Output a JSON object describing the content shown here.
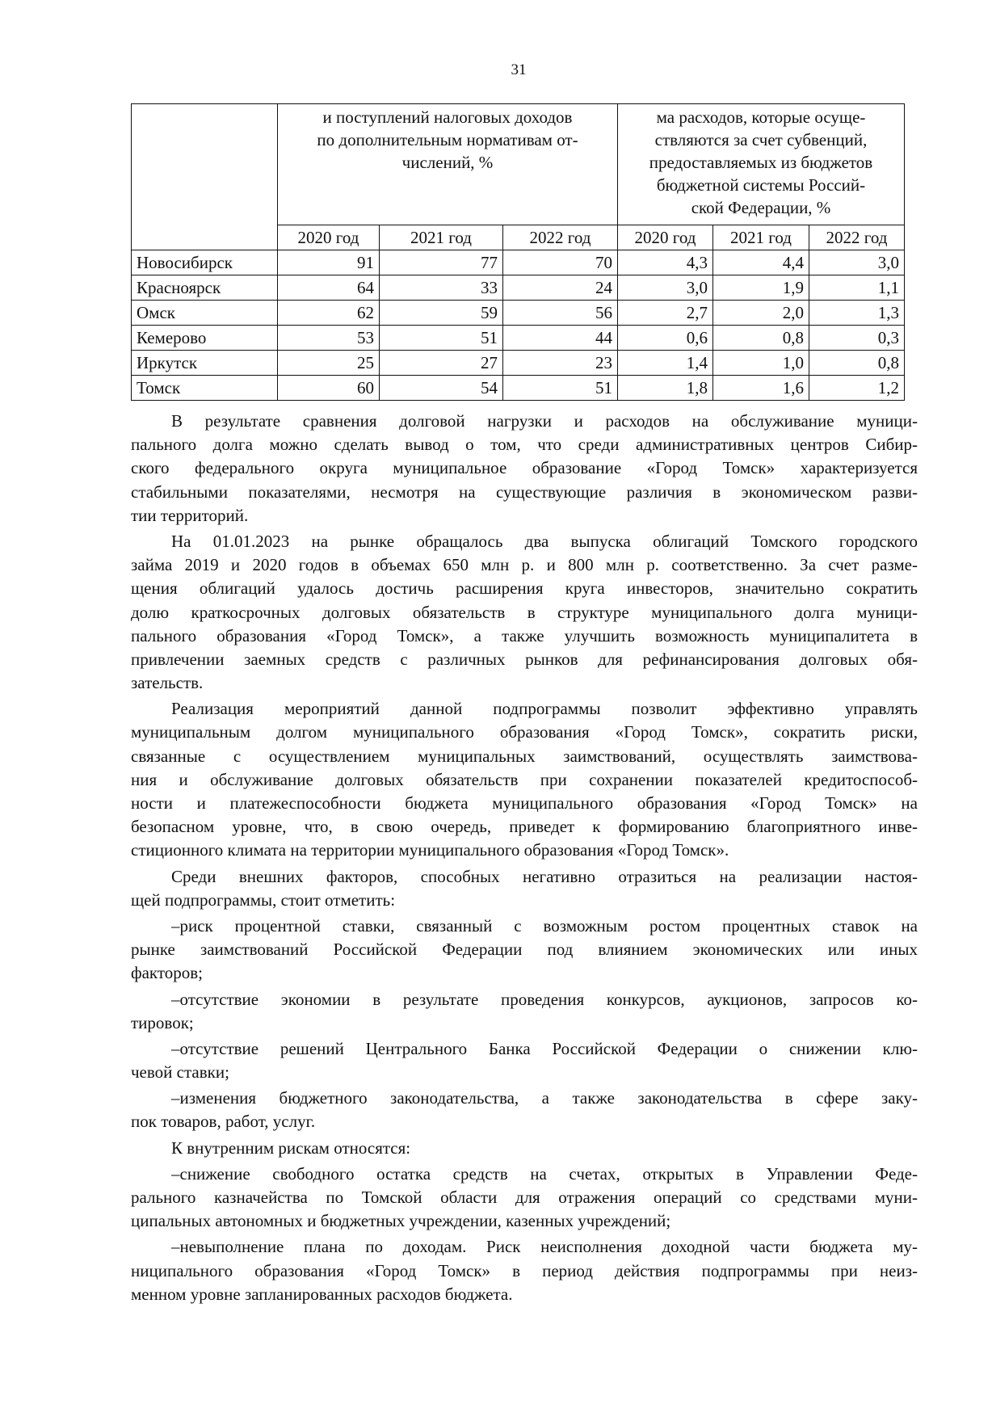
{
  "page_number": "31",
  "table": {
    "header_left": [
      "и поступлений налоговых доходов",
      "по дополнительным нормативам от-",
      "числений, %"
    ],
    "header_right": [
      "ма расходов, которые осуще-",
      "ствляются за счет субвенций,",
      "предоставляемых из бюджетов",
      "бюджетной системы Россий-",
      "ской Федерации, %"
    ],
    "years": [
      "2020 год",
      "2021 год",
      "2022 год",
      "2020 год",
      "2021 год",
      "2022 год"
    ],
    "rows": [
      {
        "city": "Новосибирск",
        "values": [
          "91",
          "77",
          "70",
          "4,3",
          "4,4",
          "3,0"
        ]
      },
      {
        "city": "Красноярск",
        "values": [
          "64",
          "33",
          "24",
          "3,0",
          "1,9",
          "1,1"
        ]
      },
      {
        "city": "Омск",
        "values": [
          "62",
          "59",
          "56",
          "2,7",
          "2,0",
          "1,3"
        ]
      },
      {
        "city": "Кемерово",
        "values": [
          "53",
          "51",
          "44",
          "0,6",
          "0,8",
          "0,3"
        ]
      },
      {
        "city": "Иркутск",
        "values": [
          "25",
          "27",
          "23",
          "1,4",
          "1,0",
          "0,8"
        ]
      },
      {
        "city": "Томск",
        "values": [
          "60",
          "54",
          "51",
          "1,8",
          "1,6",
          "1,2"
        ]
      }
    ]
  },
  "paragraphs": [
    [
      "В результате сравнения долговой нагрузки и расходов на обслуживание муници-",
      "пального долга можно сделать вывод о том, что среди административных центров Сибир-",
      "ского федерального округа муниципальное образование «Город Томск» характеризуется",
      "стабильными показателями, несмотря на существующие различия в экономическом разви-",
      "тии территорий."
    ],
    [
      "На 01.01.2023 на рынке обращалось два выпуска облигаций Томского городского",
      "займа 2019 и 2020 годов в объемах 650 млн р. и 800 млн р. соответственно. За счет разме-",
      "щения облигаций удалось достичь расширения круга инвесторов, значительно сократить",
      "долю краткосрочных долговых обязательств в структуре муниципального долга муници-",
      "пального образования «Город Томск», а также улучшить возможность муниципалитета в",
      "привлечении заемных средств с различных рынков для рефинансирования долговых обя-",
      "зательств."
    ],
    [
      "Реализация мероприятий данной подпрограммы позволит эффективно управлять",
      "муниципальным долгом муниципального образования «Город Томск», сократить риски,",
      "связанные с осуществлением муниципальных заимствований, осуществлять заимствова-",
      "ния и обслуживание долговых обязательств при сохранении показателей кредитоспособ-",
      "ности и платежеспособности бюджета муниципального образования «Город Томск» на",
      "безопасном уровне, что, в свою очередь, приведет к формированию благоприятного инве-",
      "стиционного климата на территории муниципального образования «Город Томск»."
    ],
    [
      "Среди внешних факторов, способных негативно отразиться на реализации настоя-",
      "щей подпрограммы, стоит отметить:"
    ],
    [
      "–риск процентной ставки, связанный с возможным ростом процентных ставок на",
      "рынке заимствований Российской Федерации под влиянием экономических или иных",
      "факторов;"
    ],
    [
      "–отсутствие экономии в результате проведения конкурсов, аукционов, запросов ко-",
      "тировок;"
    ],
    [
      "–отсутствие решений Центрального Банка Российской Федерации о снижении клю-",
      "чевой ставки;"
    ],
    [
      "–изменения бюджетного законодательства, а также законодательства в сфере заку-",
      "пок товаров, работ, услуг."
    ],
    [
      "К внутренним рискам относятся:"
    ],
    [
      "–снижение свободного остатка средств на счетах, открытых в Управлении Феде-",
      "рального казначейства по Томской области для отражения операций со средствами муни-",
      "ципальных автономных и бюджетных учреждении, казенных учреждений;"
    ],
    [
      "–невыполнение плана по доходам. Риск неисполнения доходной части бюджета му-",
      "ниципального образования «Город Томск» в период действия подпрограммы при неиз-",
      "менном уровне запланированных расходов бюджета."
    ]
  ]
}
